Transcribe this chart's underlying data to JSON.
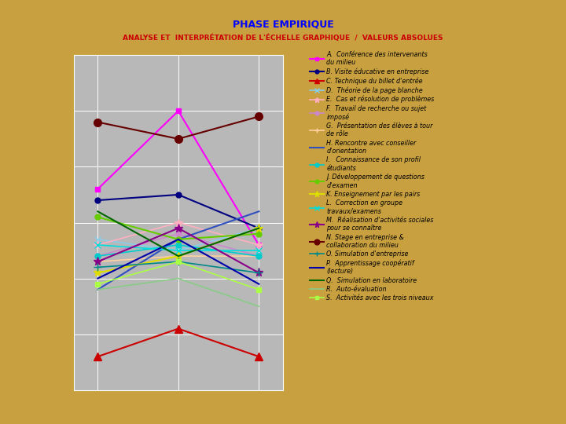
{
  "title": "PHASE EMPIRIQUE",
  "subtitle": "ANALYSE ET  INTERPRÉTATION DE L'ÉCHELLE GRAPHIQUE  /  VALEURS ABSOLUES",
  "background_outer": "#C8A040",
  "background_panel": "#000000",
  "background_plot": "#B8B8B8",
  "x_positions": [
    1,
    2,
    3
  ],
  "series": [
    {
      "label": "A.  Conférence des intervenants\ndu milieu",
      "color": "#FF00FF",
      "marker": "s",
      "markersize": 5,
      "linewidth": 1.5,
      "values": [
        3.8,
        4.5,
        3.3
      ]
    },
    {
      "label": "B. Visite éducative en entreprise",
      "color": "#000080",
      "marker": "o",
      "markersize": 5,
      "linewidth": 1.5,
      "values": [
        3.7,
        3.75,
        3.45
      ]
    },
    {
      "label": "C. Technique du billet d'entrée",
      "color": "#CC0000",
      "marker": "^",
      "markersize": 7,
      "linewidth": 1.5,
      "values": [
        2.3,
        2.55,
        2.3
      ]
    },
    {
      "label": "D.  Théorie de la page blanche",
      "color": "#87CEEB",
      "marker": "x",
      "markersize": 6,
      "linewidth": 1.2,
      "values": [
        3.35,
        3.25,
        3.45
      ]
    },
    {
      "label": "E.  Cas et résolution de problèmes",
      "color": "#FFB0C0",
      "marker": "*",
      "markersize": 7,
      "linewidth": 1.2,
      "values": [
        3.3,
        3.5,
        3.3
      ]
    },
    {
      "label": "F.  Travail de recherche ou sujet\nimposé",
      "color": "#CC88CC",
      "marker": "o",
      "markersize": 5,
      "linewidth": 1.2,
      "values": [
        3.2,
        3.4,
        3.2
      ]
    },
    {
      "label": "G.  Présentation des élèves à tour\nde rôle",
      "color": "#FFD0A0",
      "marker": "+",
      "markersize": 6,
      "linewidth": 1.2,
      "values": [
        3.15,
        3.2,
        3.2
      ]
    },
    {
      "label": "H. Rencontre avec conseiller\nd'orientation",
      "color": "#3050C0",
      "marker": "None",
      "markersize": 0,
      "linewidth": 1.5,
      "values": [
        2.9,
        3.35,
        3.6
      ]
    },
    {
      "label": "I.   Connaissance de son profil\nétudiants",
      "color": "#00CCCC",
      "marker": "o",
      "markersize": 5,
      "linewidth": 1.2,
      "values": [
        3.2,
        3.3,
        3.2
      ]
    },
    {
      "label": "J. Développement de questions\nd'examen",
      "color": "#66CC00",
      "marker": "o",
      "markersize": 5,
      "linewidth": 1.5,
      "values": [
        3.55,
        3.35,
        3.4
      ]
    },
    {
      "label": "K. Enseignement par les pairs",
      "color": "#DDDD00",
      "marker": "*",
      "markersize": 8,
      "linewidth": 1.5,
      "values": [
        3.05,
        3.2,
        3.45
      ]
    },
    {
      "label": "L.  Correction en groupe\ntravaux/examens",
      "color": "#00DDDD",
      "marker": "x",
      "markersize": 6,
      "linewidth": 1.2,
      "values": [
        3.3,
        3.25,
        3.25
      ]
    },
    {
      "label": "M.  Réalisation d'activités sociales\npour se connaître",
      "color": "#880088",
      "marker": "*",
      "markersize": 8,
      "linewidth": 1.5,
      "values": [
        3.15,
        3.45,
        3.05
      ]
    },
    {
      "label": "N. Stage en entreprise &\ncollaboration du milieu",
      "color": "#660000",
      "marker": "o",
      "markersize": 7,
      "linewidth": 1.5,
      "values": [
        4.4,
        4.25,
        4.45
      ]
    },
    {
      "label": "O. Simulation d'entreprise",
      "color": "#008888",
      "marker": "+",
      "markersize": 7,
      "linewidth": 1.2,
      "values": [
        3.1,
        3.15,
        3.05
      ]
    },
    {
      "label": "P.  Apprentissage coopératif\n(lecture)",
      "color": "#0000AA",
      "marker": "None",
      "markersize": 0,
      "linewidth": 1.5,
      "values": [
        3.0,
        3.35,
        2.95
      ]
    },
    {
      "label": "Q.  Simulation en laboratoire",
      "color": "#006600",
      "marker": "None",
      "markersize": 0,
      "linewidth": 1.5,
      "values": [
        3.6,
        3.2,
        3.45
      ]
    },
    {
      "label": "R.  Auto-évaluation",
      "color": "#88CC88",
      "marker": "None",
      "markersize": 0,
      "linewidth": 1.2,
      "values": [
        2.9,
        3.0,
        2.75
      ]
    },
    {
      "label": "S.  Activités avec les trois niveaux",
      "color": "#AAFF44",
      "marker": "s",
      "markersize": 4,
      "linewidth": 1.2,
      "values": [
        2.95,
        3.15,
        2.9
      ]
    }
  ],
  "ylim": [
    2.0,
    5.0
  ],
  "xlim": [
    0.7,
    3.3
  ],
  "title_color": "#0000FF",
  "subtitle_color": "#CC0000",
  "title_fontsize": 9,
  "subtitle_fontsize": 6.5,
  "legend_fontsize": 5.8
}
